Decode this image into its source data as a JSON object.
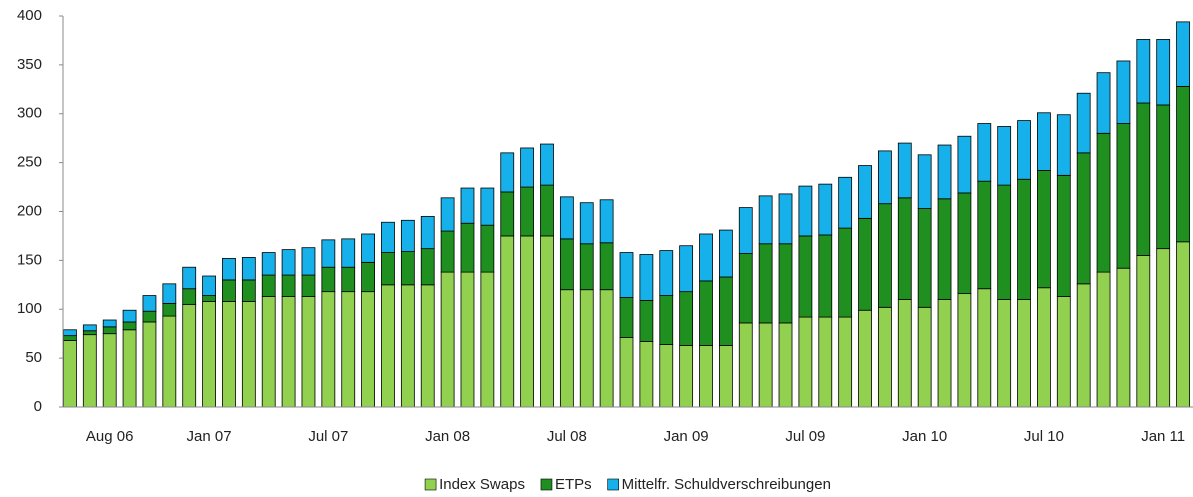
{
  "chart_data": {
    "type": "stacked_bar",
    "categories": [
      null,
      null,
      "Aug 06",
      null,
      null,
      null,
      null,
      "Jan 07",
      null,
      null,
      null,
      null,
      null,
      "Jul 07",
      null,
      null,
      null,
      null,
      null,
      "Jan 08",
      null,
      null,
      null,
      null,
      null,
      "Jul 08",
      null,
      null,
      null,
      null,
      null,
      "Jan 09",
      null,
      null,
      null,
      null,
      null,
      "Jul 09",
      null,
      null,
      null,
      null,
      null,
      "Jan 10",
      null,
      null,
      null,
      null,
      null,
      "Jul 10",
      null,
      null,
      null,
      null,
      null,
      "Jan 11",
      null
    ],
    "series": [
      {
        "name": "Index Swaps",
        "color": "#92d050",
        "values": [
          68,
          74,
          75,
          79,
          87,
          93,
          105,
          108,
          108,
          108,
          113,
          113,
          113,
          118,
          118,
          118,
          125,
          125,
          125,
          138,
          138,
          138,
          175,
          175,
          175,
          120,
          120,
          120,
          71,
          67,
          64,
          63,
          63,
          63,
          86,
          86,
          86,
          92,
          92,
          92,
          99,
          102,
          110,
          102,
          110,
          116,
          121,
          110,
          110,
          122,
          113,
          126,
          138,
          142,
          155,
          162,
          169
        ]
      },
      {
        "name": "ETPs",
        "color": "#1f8f1f",
        "values": [
          5,
          4,
          7,
          8,
          11,
          13,
          16,
          6,
          22,
          22,
          22,
          22,
          22,
          25,
          25,
          30,
          33,
          34,
          37,
          42,
          50,
          48,
          45,
          50,
          52,
          52,
          47,
          48,
          41,
          42,
          50,
          55,
          66,
          70,
          71,
          81,
          81,
          83,
          84,
          91,
          94,
          106,
          104,
          101,
          103,
          103,
          110,
          117,
          123,
          120,
          124,
          134,
          142,
          148,
          156,
          147,
          159
        ]
      },
      {
        "name": "Mittelfr. Schuldverschreibungen",
        "color": "#16b1ea",
        "values": [
          6,
          6,
          7,
          12,
          16,
          20,
          22,
          20,
          22,
          23,
          23,
          26,
          28,
          28,
          29,
          29,
          31,
          32,
          33,
          34,
          36,
          38,
          40,
          40,
          42,
          43,
          42,
          44,
          46,
          47,
          46,
          47,
          48,
          48,
          47,
          49,
          51,
          51,
          52,
          52,
          54,
          54,
          56,
          55,
          55,
          58,
          59,
          60,
          60,
          59,
          62,
          61,
          62,
          64,
          65,
          67,
          66
        ]
      }
    ],
    "ylim": [
      0,
      400
    ],
    "yticks": [
      0,
      50,
      100,
      150,
      200,
      250,
      300,
      350,
      400
    ],
    "grid": false,
    "legend": "bottom"
  }
}
